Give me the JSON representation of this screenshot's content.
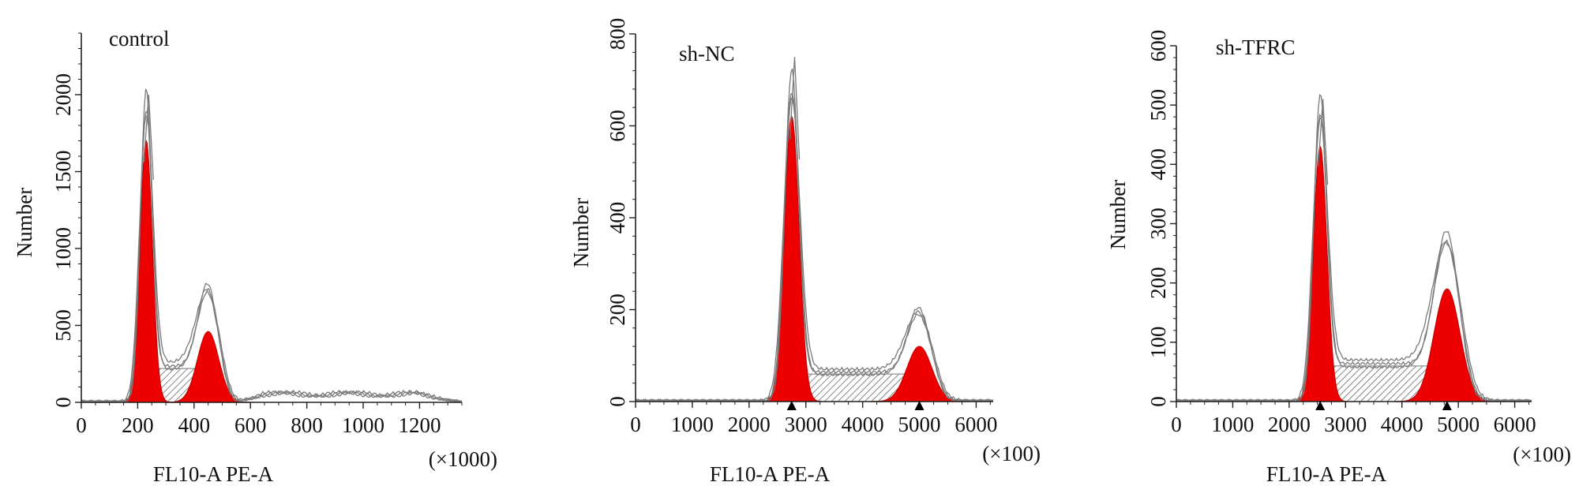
{
  "colors": {
    "fill": "#ee0000",
    "fill_dark": "#c40000",
    "outline": "#7a7a7a",
    "axis": "#222222",
    "hatch": "#555555"
  },
  "chart_data": [
    {
      "type": "histogram",
      "panel": "control",
      "annotation": "control",
      "ylabel": "Number",
      "xlabel": "FL10-A PE-A",
      "xunit": "(×1000)",
      "xlim": [
        0,
        1350
      ],
      "ylim": [
        0,
        2400
      ],
      "xticks": [
        0,
        200,
        400,
        600,
        800,
        1000,
        1200
      ],
      "yticks": [
        0,
        500,
        1000,
        1500,
        2000
      ],
      "y_tick_labels_rotated": true,
      "peaks": [
        {
          "center": 230,
          "height": 1700,
          "sigma": 22
        },
        {
          "center": 450,
          "height": 460,
          "sigma": 38
        }
      ],
      "s_phase": {
        "start": 230,
        "end": 450,
        "level": 220
      },
      "raw_max": 2000,
      "tail": {
        "from": 560,
        "to": 1340,
        "level": 60
      },
      "peak_markers": []
    },
    {
      "type": "histogram",
      "panel": "sh-NC",
      "annotation": "sh-NC",
      "ylabel": "Number",
      "xlabel": "FL10-A PE-A",
      "xunit": "(×100)",
      "xlim": [
        0,
        6300
      ],
      "ylim": [
        0,
        800
      ],
      "xticks": [
        0,
        1000,
        2000,
        3000,
        4000,
        5000,
        6000
      ],
      "yticks": [
        0,
        200,
        400,
        600,
        800
      ],
      "y_tick_labels_rotated": true,
      "peaks": [
        {
          "center": 2750,
          "height": 620,
          "sigma": 130
        },
        {
          "center": 5000,
          "height": 120,
          "sigma": 220
        }
      ],
      "s_phase": {
        "start": 2750,
        "end": 5000,
        "level": 60
      },
      "raw_max": 750,
      "tail": null,
      "peak_markers": [
        2750,
        5000
      ]
    },
    {
      "type": "histogram",
      "panel": "sh-TFRC",
      "annotation": "sh-TFRC",
      "ylabel": "Number",
      "xlabel": "FL10-A PE-A",
      "xunit": "(×100)",
      "xlim": [
        0,
        6300
      ],
      "ylim": [
        0,
        600
      ],
      "xticks": [
        0,
        1000,
        2000,
        3000,
        4000,
        5000,
        6000
      ],
      "yticks": [
        0,
        100,
        200,
        300,
        400,
        500,
        600
      ],
      "y_tick_labels_rotated": true,
      "peaks": [
        {
          "center": 2550,
          "height": 430,
          "sigma": 120
        },
        {
          "center": 4800,
          "height": 190,
          "sigma": 230
        }
      ],
      "s_phase": {
        "start": 2550,
        "end": 4800,
        "level": 60
      },
      "raw_max": 510,
      "tail": null,
      "peak_markers": [
        2550,
        4800
      ]
    }
  ]
}
